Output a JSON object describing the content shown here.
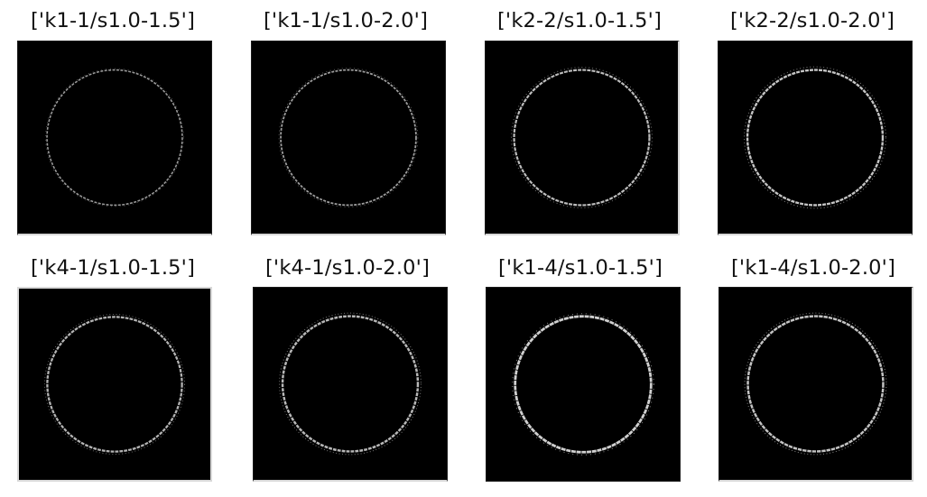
{
  "panels": [
    {
      "title": "['k1-1/s1.0-1.5']",
      "image_name": "circle-edge-image",
      "description_icon": "ring-image"
    },
    {
      "title": "['k1-1/s1.0-2.0']",
      "image_name": "circle-edge-image",
      "description_icon": "ring-image"
    },
    {
      "title": "['k2-2/s1.0-1.5']",
      "image_name": "circle-edge-image",
      "description_icon": "ring-image"
    },
    {
      "title": "['k2-2/s1.0-2.0']",
      "image_name": "circle-edge-image",
      "description_icon": "ring-image"
    },
    {
      "title": "['k4-1/s1.0-1.5']",
      "image_name": "circle-edge-image",
      "description_icon": "ring-image"
    },
    {
      "title": "['k4-1/s1.0-2.0']",
      "image_name": "circle-edge-image",
      "description_icon": "ring-image"
    },
    {
      "title": "['k1-4/s1.0-1.5']",
      "image_name": "circle-edge-image",
      "description_icon": "ring-image"
    },
    {
      "title": "['k1-4/s1.0-2.0']",
      "image_name": "circle-edge-image",
      "description_icon": "ring-image"
    }
  ],
  "colors": {
    "background": "#ffffff",
    "image_background": "#000000",
    "ring": "#bfbfbf",
    "text": "#111111"
  }
}
